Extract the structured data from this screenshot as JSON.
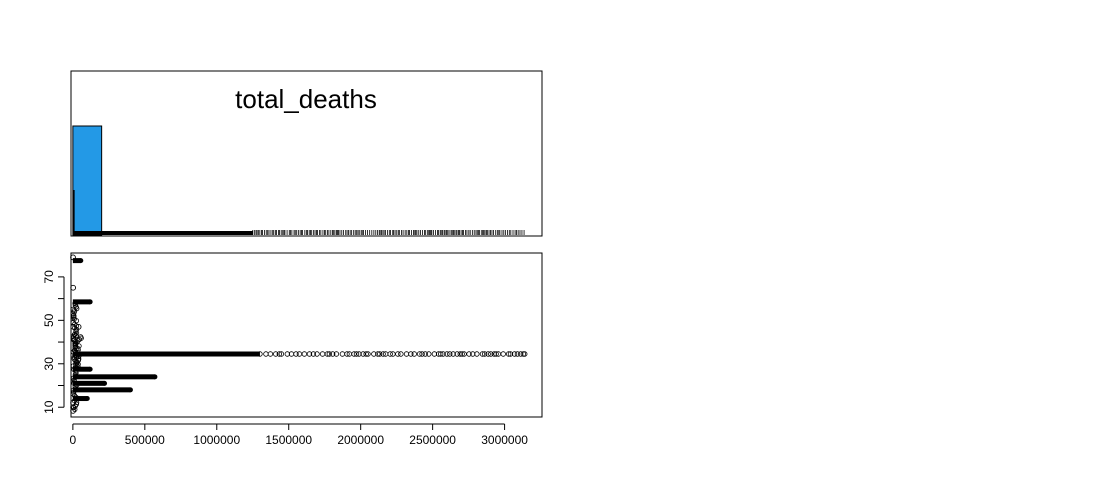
{
  "chart_data": [
    {
      "type": "bar",
      "title": "total_deaths",
      "xlabel": "",
      "ylabel": "",
      "bar_color": "#2399e6",
      "xlim": [
        -13000,
        3260000
      ],
      "bins": [
        {
          "x0": 0,
          "x1": 200000,
          "relative_height": 1.0
        }
      ],
      "rug": {
        "dense_range": [
          0,
          1250000
        ],
        "sparse_range": [
          1250000,
          3140000
        ]
      }
    },
    {
      "type": "scatter",
      "xlabel": "",
      "ylabel": "",
      "xlim": [
        -13000,
        3260000
      ],
      "ylim": [
        5.5,
        81
      ],
      "x_ticks": [
        0,
        500000,
        1000000,
        1500000,
        2000000,
        2500000,
        3000000
      ],
      "x_tick_labels": [
        "0",
        "500000",
        "1000000",
        "1500000",
        "2000000",
        "2500000",
        "3000000"
      ],
      "y_ticks": [
        10,
        30,
        50,
        70
      ],
      "y_tick_labels": [
        "10",
        "30",
        "50",
        "70"
      ],
      "horizontal_bands": [
        {
          "y": 34.5,
          "x_max": 3140000
        },
        {
          "y": 24,
          "x_max": 570000
        },
        {
          "y": 21,
          "x_max": 220000
        },
        {
          "y": 18,
          "x_max": 400000
        },
        {
          "y": 27.5,
          "x_max": 120000
        },
        {
          "y": 14,
          "x_max": 100000
        },
        {
          "y": 58.5,
          "x_max": 120000
        },
        {
          "y": 77.5,
          "x_max": 55000
        }
      ],
      "points": [
        {
          "x": 1000,
          "y": 79
        },
        {
          "x": 2000,
          "y": 65
        },
        {
          "x": 1500,
          "y": 8.3
        },
        {
          "x": 1500,
          "y": 10
        },
        {
          "x": 1500,
          "y": 12
        },
        {
          "x": 3000,
          "y": 47
        },
        {
          "x": 40000,
          "y": 47
        },
        {
          "x": 4000,
          "y": 52
        },
        {
          "x": 3000,
          "y": 55
        },
        {
          "x": 8000,
          "y": 41
        }
      ]
    }
  ]
}
